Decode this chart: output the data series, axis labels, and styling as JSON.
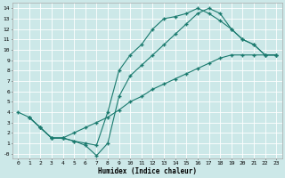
{
  "title": "",
  "xlabel": "Humidex (Indice chaleur)",
  "bg_color": "#cce8e8",
  "grid_color": "#ffffff",
  "line_color": "#1a7a6e",
  "marker": "+",
  "xlim": [
    -0.5,
    23.5
  ],
  "ylim": [
    -0.5,
    14.5
  ],
  "xticks": [
    0,
    1,
    2,
    3,
    4,
    5,
    6,
    7,
    8,
    9,
    10,
    11,
    12,
    13,
    14,
    15,
    16,
    17,
    18,
    19,
    20,
    21,
    22,
    23
  ],
  "yticks": [
    0,
    1,
    2,
    3,
    4,
    5,
    6,
    7,
    8,
    9,
    10,
    11,
    12,
    13,
    14
  ],
  "line1": {
    "x": [
      0,
      1,
      2,
      3,
      4,
      5,
      6,
      7,
      8,
      9,
      10,
      11,
      12,
      13,
      14,
      15,
      16,
      17,
      18,
      19,
      20,
      21,
      22,
      23
    ],
    "y": [
      4,
      3.5,
      2.5,
      1.5,
      1.5,
      1.2,
      0.8,
      -0.2,
      1.0,
      5.5,
      7.5,
      8.5,
      9.5,
      10.5,
      11.5,
      12.5,
      13.5,
      14.0,
      13.5,
      12.0,
      11.0,
      10.5,
      9.5,
      9.5
    ]
  },
  "line2": {
    "x": [
      1,
      2,
      3,
      4,
      5,
      6,
      7,
      8,
      9,
      10,
      11,
      12,
      13,
      14,
      15,
      16,
      17,
      18,
      19,
      20,
      21,
      22,
      23
    ],
    "y": [
      3.5,
      2.5,
      1.5,
      1.5,
      1.2,
      1.0,
      0.8,
      4.0,
      8.0,
      9.5,
      10.5,
      12.0,
      13.0,
      13.2,
      13.5,
      14.0,
      13.5,
      12.8,
      12.0,
      11.0,
      10.5,
      9.5,
      9.5
    ]
  },
  "line3": {
    "x": [
      1,
      2,
      3,
      4,
      5,
      6,
      7,
      8,
      9,
      10,
      11,
      12,
      13,
      14,
      15,
      16,
      17,
      18,
      19,
      20,
      21,
      22,
      23
    ],
    "y": [
      3.5,
      2.5,
      1.5,
      1.5,
      2.0,
      2.5,
      3.0,
      3.5,
      4.2,
      5.0,
      5.5,
      6.2,
      6.7,
      7.2,
      7.7,
      8.2,
      8.7,
      9.2,
      9.5,
      9.5,
      9.5,
      9.5,
      9.5
    ]
  },
  "xlabel_fontsize": 5.5,
  "tick_fontsize": 4.5,
  "markersize": 2.5,
  "linewidth": 0.8
}
